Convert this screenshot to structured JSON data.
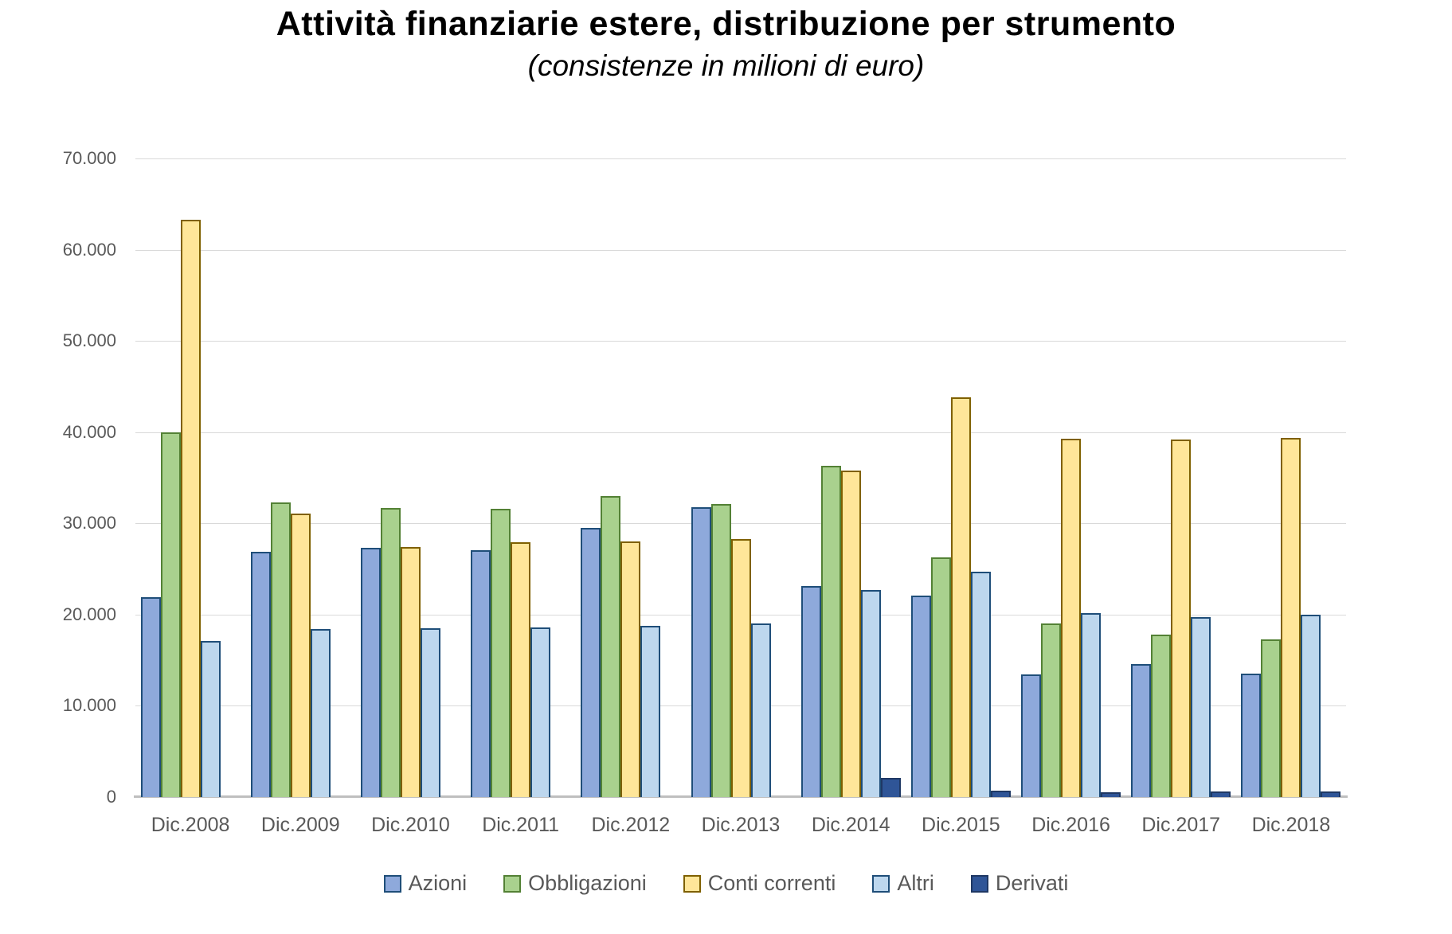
{
  "title": "Attività finanziarie estere, distribuzione per strumento",
  "subtitle": "(consistenze in milioni di euro)",
  "colors": {
    "gridline": "#d9d9d9",
    "axis_line": "#bfbfbf",
    "axis_text": "#595959",
    "title_text": "#000000"
  },
  "chart_data": {
    "type": "bar",
    "title": "Attività finanziarie estere, distribuzione per strumento",
    "subtitle": "(consistenze in milioni di euro)",
    "xlabel": "",
    "ylabel": "",
    "ylim": [
      0,
      70000
    ],
    "grid": true,
    "legend_position": "bottom",
    "categories": [
      "Dic.2008",
      "Dic.2009",
      "Dic.2010",
      "Dic.2011",
      "Dic.2012",
      "Dic.2013",
      "Dic.2014",
      "Dic.2015",
      "Dic.2016",
      "Dic.2017",
      "Dic.2018"
    ],
    "yticks": [
      {
        "value": 0,
        "label": "0"
      },
      {
        "value": 10000,
        "label": "10.000"
      },
      {
        "value": 20000,
        "label": "20.000"
      },
      {
        "value": 30000,
        "label": "30.000"
      },
      {
        "value": 40000,
        "label": "40.000"
      },
      {
        "value": 50000,
        "label": "50.000"
      },
      {
        "value": 60000,
        "label": "60.000"
      },
      {
        "value": 70000,
        "label": "70.000"
      }
    ],
    "series": [
      {
        "name": "Azioni",
        "fill": "#8ea9db",
        "border": "#1f4e79",
        "values": [
          21900,
          26900,
          27300,
          27100,
          29500,
          31800,
          23100,
          22100,
          13400,
          14600,
          13500
        ]
      },
      {
        "name": "Obbligazioni",
        "fill": "#a9d18e",
        "border": "#538135",
        "values": [
          40000,
          32300,
          31700,
          31600,
          33000,
          32100,
          36300,
          26300,
          19000,
          17800,
          17300
        ]
      },
      {
        "name": "Conti correnti",
        "fill": "#ffe699",
        "border": "#7f6000",
        "values": [
          63300,
          31100,
          27400,
          27900,
          28000,
          28300,
          35800,
          43800,
          39300,
          39200,
          39400
        ]
      },
      {
        "name": "Altri",
        "fill": "#bdd7ee",
        "border": "#1f4e79",
        "values": [
          17100,
          18400,
          18500,
          18600,
          18800,
          19000,
          22700,
          24700,
          20200,
          19700,
          20000
        ]
      },
      {
        "name": "Derivati",
        "fill": "#2f5597",
        "border": "#1f3864",
        "values": [
          0,
          0,
          0,
          0,
          0,
          0,
          2100,
          700,
          500,
          600,
          600
        ]
      }
    ]
  }
}
